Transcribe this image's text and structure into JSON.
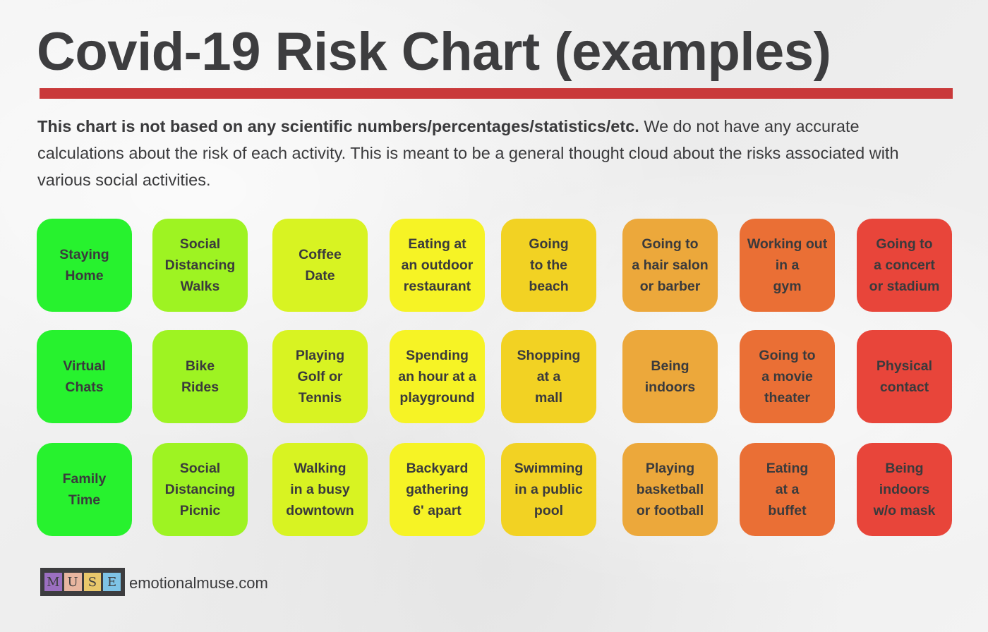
{
  "title": "Covid-19 Risk Chart (examples)",
  "intro": {
    "bold": "This chart is not based on any scientific numbers/percentages/statistics/etc.",
    "rest": " We do not have any accurate calculations about the risk of each activity. This is meant to be a general thought cloud about the risks associated with various social activities."
  },
  "colors": {
    "accent_rule": "#c9393a",
    "columns": [
      "#27f22e",
      "#9ef322",
      "#d8f322",
      "#f6f325",
      "#f2d223",
      "#eca83b",
      "#ea6f35",
      "#e8453a"
    ]
  },
  "columns": [
    {
      "tiles": [
        "Staying\nHome",
        "Virtual\nChats",
        "Family\nTime"
      ]
    },
    {
      "tiles": [
        "Social\nDistancing\nWalks",
        "Bike\nRides",
        "Social\nDistancing\nPicnic"
      ]
    },
    {
      "tiles": [
        "Coffee\nDate",
        "Playing\nGolf or\nTennis",
        "Walking\nin a busy\ndowntown"
      ]
    },
    {
      "tiles": [
        "Eating at\nan outdoor\nrestaurant",
        "Spending\nan hour at a\nplayground",
        "Backyard\ngathering\n6' apart"
      ]
    },
    {
      "tiles": [
        "Going\nto the\nbeach",
        "Shopping\nat a\nmall",
        "Swimming\nin a public\npool"
      ]
    },
    {
      "tiles": [
        "Going to\na hair salon\nor barber",
        "Being\nindoors",
        "Playing\nbasketball\nor football"
      ]
    },
    {
      "tiles": [
        "Working out\nin a\ngym",
        "Going to\na movie\ntheater",
        "Eating\nat a\nbuffet"
      ]
    },
    {
      "tiles": [
        "Going to\na concert\nor stadium",
        "Physical\ncontact",
        "Being\nindoors\nw/o mask"
      ]
    }
  ],
  "footer": {
    "logo_letters": [
      {
        "letter": "M",
        "color": "#9b6fc0"
      },
      {
        "letter": "U",
        "color": "#e8b6a0"
      },
      {
        "letter": "S",
        "color": "#e9c86b"
      },
      {
        "letter": "E",
        "color": "#7ec3e6"
      }
    ],
    "site": "emotionalmuse.com"
  }
}
